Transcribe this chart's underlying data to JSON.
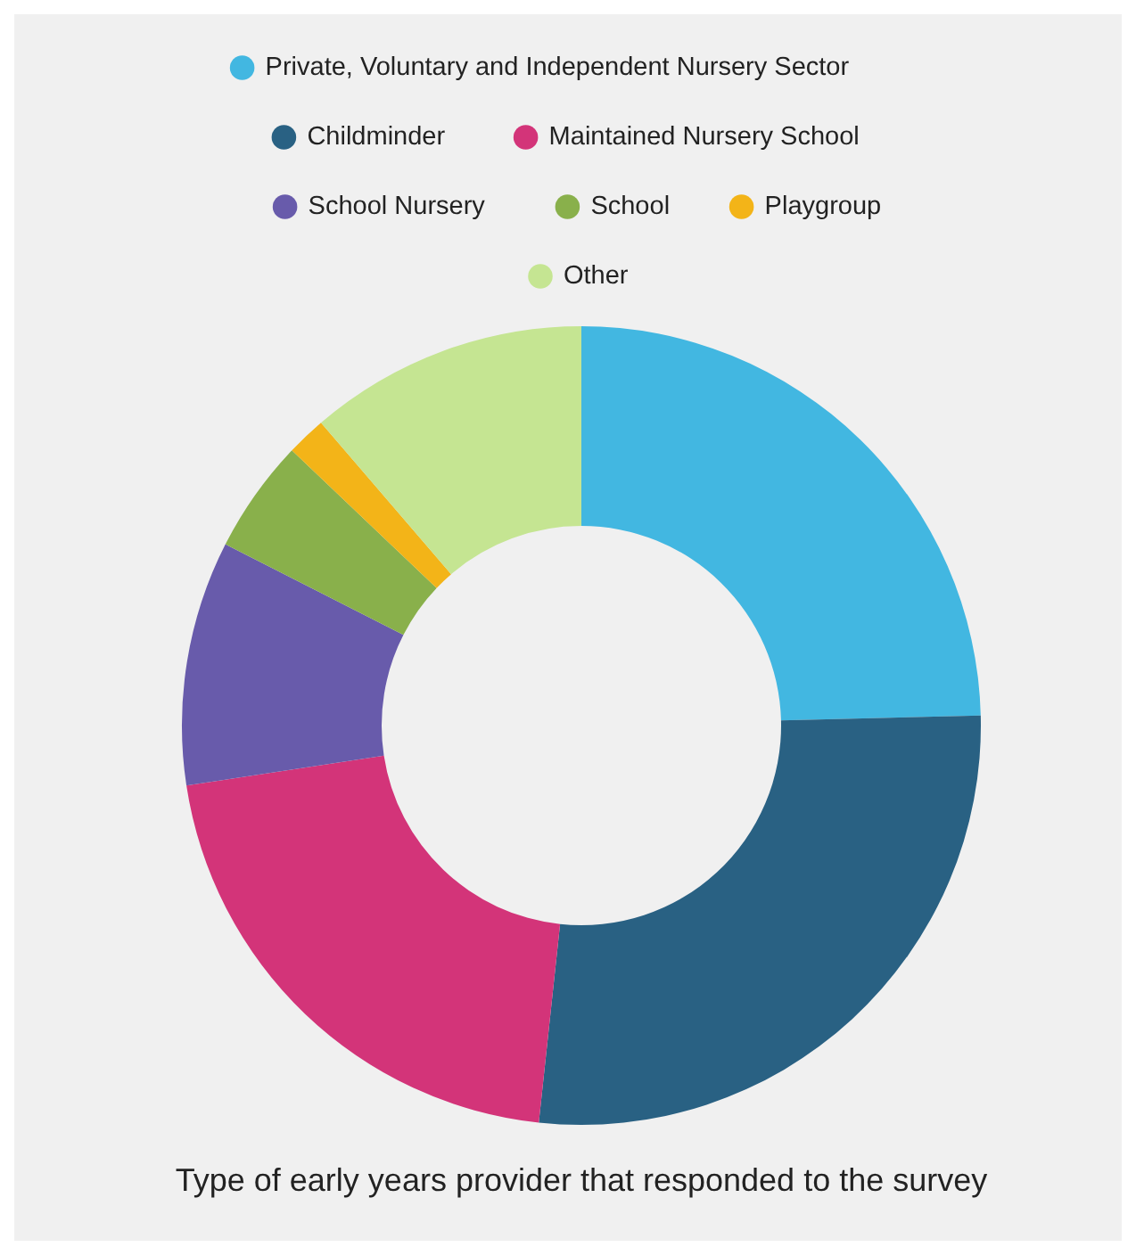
{
  "chart_data": {
    "type": "donut",
    "title": "Type of early years provider that responded to the survey",
    "categories": [
      "Private, Voluntary and Independent Nursery Sector",
      "Childminder",
      "Maintained Nursery School",
      "School Nursery",
      "School",
      "Playgroup",
      "Other"
    ],
    "values": [
      24.6,
      27.1,
      20.9,
      9.9,
      4.6,
      1.6,
      11.3
    ],
    "colors": [
      "#42b7e1",
      "#296183",
      "#d33479",
      "#685bab",
      "#89b04b",
      "#f3b418",
      "#c5e592"
    ],
    "legend": "top"
  }
}
